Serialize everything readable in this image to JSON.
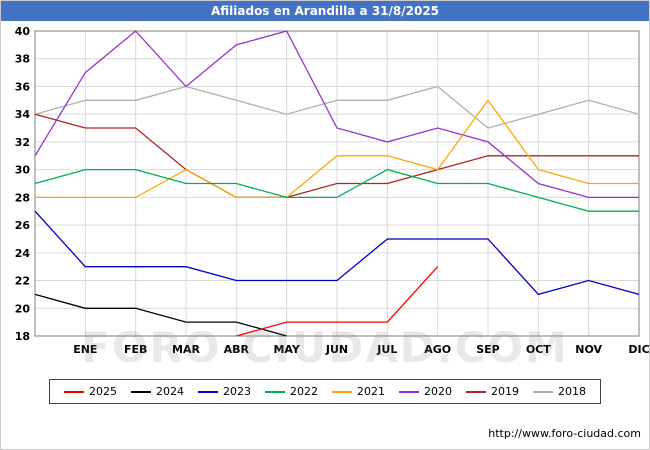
{
  "header": {
    "title": "Afiliados en Arandilla a 31/8/2025",
    "bg_color": "#4472c4"
  },
  "watermark": "FORO-CIUDAD.COM",
  "footer": {
    "url": "http://www.foro-ciudad.com"
  },
  "chart_data": {
    "type": "line",
    "title": "Afiliados en Arandilla a 31/8/2025",
    "xlabel": "",
    "ylabel": "",
    "ylim": [
      18,
      40
    ],
    "ytick_step": 2,
    "grid": true,
    "legend_position": "bottom",
    "x_tick_labels": [
      "ENE",
      "FEB",
      "MAR",
      "ABR",
      "MAY",
      "JUN",
      "JUL",
      "AGO",
      "SEP",
      "OCT",
      "NOV",
      "DIC"
    ],
    "x_note": "13 points per series: index 0 = left axis edge (pre-ENE), indices 1-12 = month ticks ENE-DIC",
    "series": [
      {
        "name": "2025",
        "color": "#ff0000",
        "values": [
          null,
          null,
          null,
          null,
          18,
          19,
          19,
          19,
          23,
          null,
          null,
          null,
          null
        ]
      },
      {
        "name": "2024",
        "color": "#000000",
        "values": [
          21,
          20,
          20,
          19,
          19,
          18,
          null,
          null,
          null,
          null,
          null,
          null,
          null
        ]
      },
      {
        "name": "2023",
        "color": "#0000cc",
        "values": [
          27,
          23,
          23,
          23,
          22,
          22,
          22,
          25,
          25,
          25,
          21,
          22,
          21
        ]
      },
      {
        "name": "2022",
        "color": "#00b050",
        "values": [
          29,
          30,
          30,
          29,
          29,
          28,
          28,
          30,
          29,
          29,
          28,
          27,
          27
        ]
      },
      {
        "name": "2021",
        "color": "#ffa500",
        "values": [
          28,
          28,
          28,
          30,
          28,
          28,
          31,
          31,
          30,
          35,
          30,
          29,
          29
        ]
      },
      {
        "name": "2020",
        "color": "#9932cc",
        "values": [
          31,
          37,
          40,
          36,
          39,
          40,
          33,
          32,
          33,
          32,
          29,
          28,
          28
        ]
      },
      {
        "name": "2019",
        "color": "#b22222",
        "values": [
          34,
          33,
          33,
          30,
          28,
          28,
          29,
          29,
          30,
          31,
          31,
          31,
          31
        ]
      },
      {
        "name": "2018",
        "color": "#b0b0b0",
        "values": [
          34,
          35,
          35,
          36,
          35,
          34,
          35,
          35,
          36,
          33,
          34,
          35,
          34
        ]
      }
    ]
  }
}
